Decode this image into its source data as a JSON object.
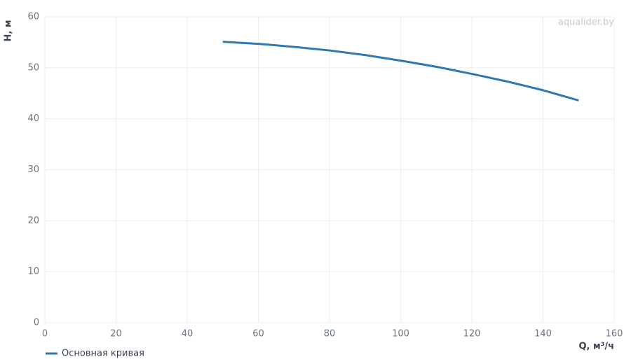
{
  "chart_data": {
    "type": "line",
    "x_label": "Q, м³/ч",
    "y_label": "H, м",
    "watermark": "aqualider.by",
    "x": [
      50,
      60,
      70,
      80,
      90,
      100,
      110,
      120,
      130,
      140,
      150
    ],
    "series": [
      {
        "name": "Основная кривая",
        "color": "#2e78b3",
        "values": [
          55.1,
          54.7,
          54.1,
          53.4,
          52.5,
          51.4,
          50.2,
          48.8,
          47.3,
          45.6,
          43.6
        ]
      }
    ],
    "xlim": [
      0,
      160
    ],
    "xticks": [
      0,
      20,
      40,
      60,
      80,
      100,
      120,
      140,
      160
    ],
    "ylim": [
      0,
      60
    ],
    "yticks": [
      0,
      10,
      20,
      30,
      40,
      50,
      60
    ],
    "grid": true
  }
}
